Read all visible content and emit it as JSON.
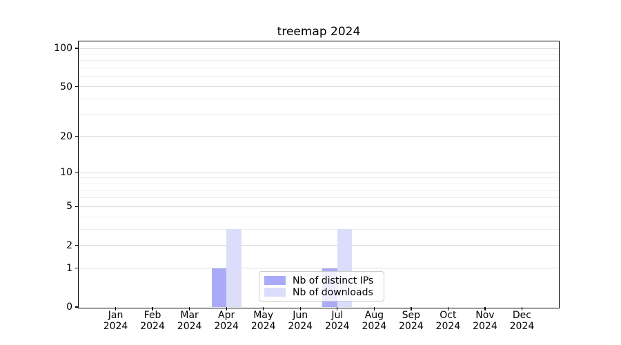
{
  "chart_data": {
    "type": "bar",
    "title": "treemap 2024",
    "categories": [
      "Jan",
      "Feb",
      "Mar",
      "Apr",
      "May",
      "Jun",
      "Jul",
      "Aug",
      "Sep",
      "Oct",
      "Nov",
      "Dec"
    ],
    "category_year": "2024",
    "series": [
      {
        "name": "Nb of distinct IPs",
        "color": "#a9abf9",
        "values": [
          0,
          0,
          0,
          1,
          0,
          0,
          1,
          0,
          0,
          0,
          0,
          0
        ]
      },
      {
        "name": "Nb of downloads",
        "color": "#dcddfb",
        "values": [
          0,
          0,
          0,
          3,
          0,
          0,
          3,
          0,
          0,
          0,
          0,
          0
        ]
      }
    ],
    "yscale": "log1p",
    "ylim": [
      0,
      100
    ],
    "y_major_ticks": [
      0,
      1,
      2,
      5,
      10,
      20,
      50,
      100
    ],
    "y_minor_gridlines": [
      3,
      4,
      6,
      7,
      8,
      9,
      30,
      40,
      60,
      70,
      80,
      90
    ],
    "grid": true,
    "legend_position": "lower center",
    "colors": {
      "major_grid": "#dcdcdc",
      "minor_grid": "#ededed",
      "spine": "#000000",
      "text": "#000000",
      "background": "#ffffff"
    }
  }
}
